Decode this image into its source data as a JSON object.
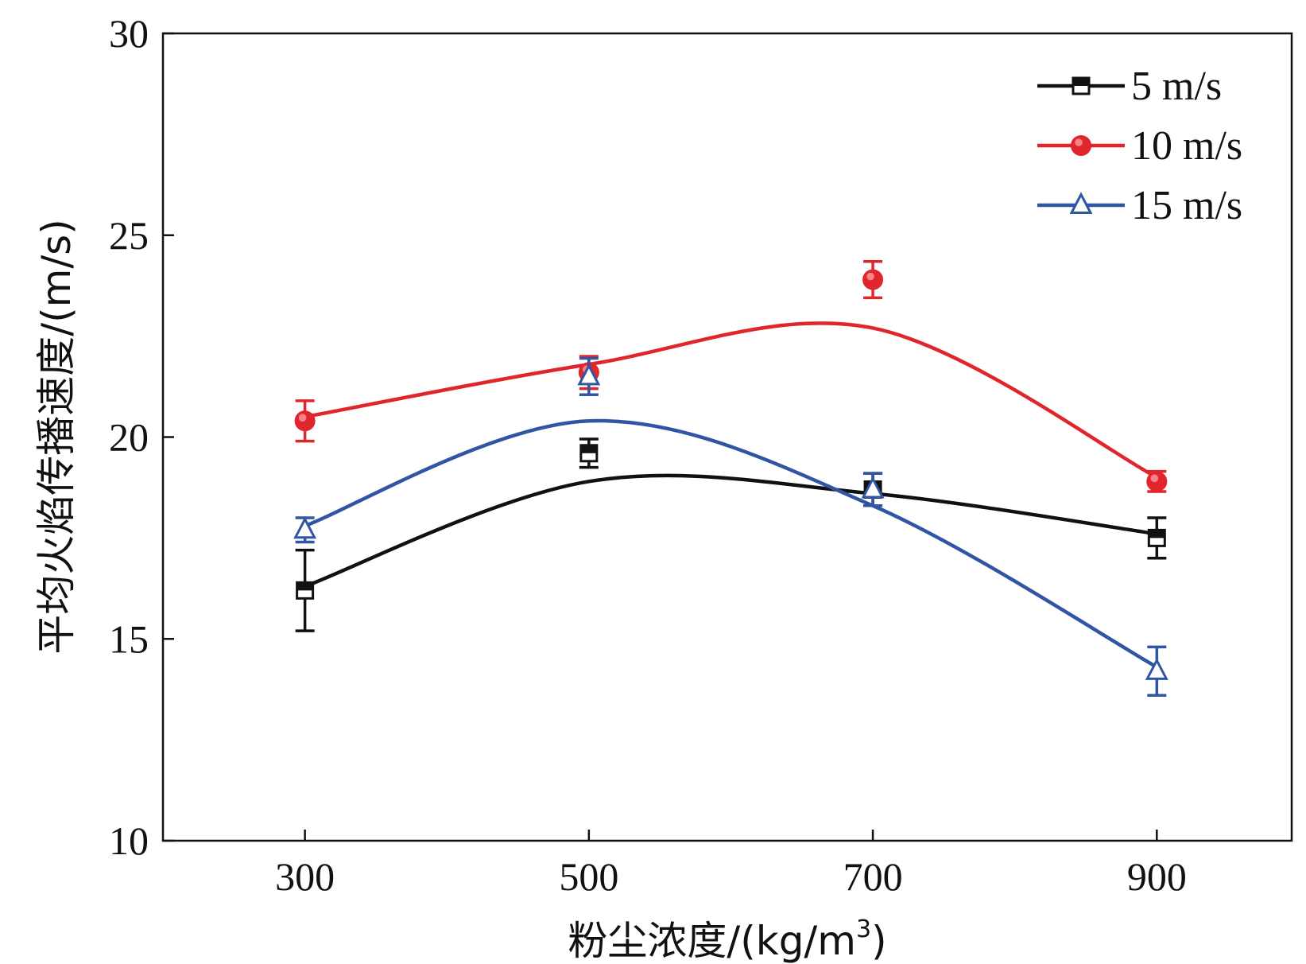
{
  "chart_data": {
    "type": "line",
    "title": "",
    "xlabel": "粉尘浓度/(kg/m",
    "xlabel_sup": "3",
    "xlabel_end": ")",
    "ylabel": "平均火焰传播速度/(m/s)",
    "xlim": [
      200,
      995
    ],
    "ylim": [
      10,
      30
    ],
    "x_ticks": [
      300,
      500,
      700,
      900
    ],
    "y_ticks": [
      10,
      15,
      20,
      25,
      30
    ],
    "grid": false,
    "legend_position": "top-right",
    "x": [
      300,
      500,
      700,
      900
    ],
    "series": [
      {
        "name": "5 m/s",
        "color": "#111111",
        "marker": "square",
        "values": [
          16.2,
          19.6,
          18.7,
          17.5
        ],
        "err": [
          1.0,
          0.35,
          0.4,
          0.5
        ],
        "fit": [
          16.3,
          18.9,
          18.6,
          17.6
        ]
      },
      {
        "name": "10 m/s",
        "color": "#e0262d",
        "marker": "circle",
        "values": [
          20.4,
          21.6,
          23.9,
          18.9
        ],
        "err": [
          0.5,
          0.4,
          0.45,
          0.25
        ],
        "fit": [
          20.5,
          21.8,
          22.7,
          19.0
        ]
      },
      {
        "name": "15 m/s",
        "color": "#2f55a4",
        "marker": "triangle",
        "values": [
          17.7,
          21.5,
          18.7,
          14.2
        ],
        "err": [
          0.3,
          0.45,
          0.4,
          0.6
        ],
        "fit": [
          17.8,
          20.4,
          18.3,
          14.3
        ]
      }
    ]
  }
}
